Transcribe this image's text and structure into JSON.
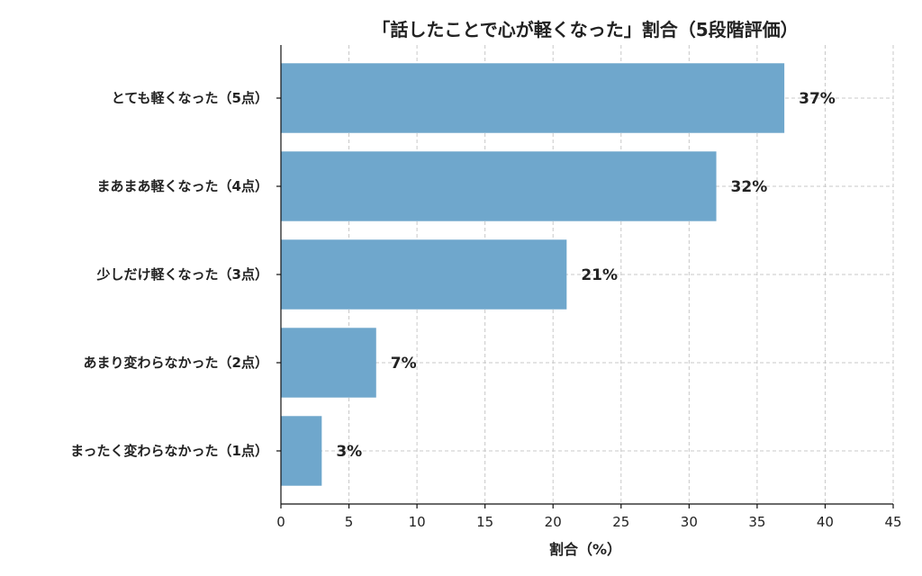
{
  "chart_data": {
    "type": "bar",
    "orientation": "horizontal",
    "title": "「話したことで心が軽くなった」割合（5段階評価）",
    "xlabel": "割合（%）",
    "ylabel": "",
    "categories": [
      "とても軽くなった（5点）",
      "まあまあ軽くなった（4点）",
      "少しだけ軽くなった（3点）",
      "あまり変わらなかった（2点）",
      "まったく変わらなかった（1点）"
    ],
    "values": [
      37,
      32,
      21,
      7,
      3
    ],
    "value_labels": [
      "37%",
      "32%",
      "21%",
      "7%",
      "3%"
    ],
    "xlim": [
      0,
      45
    ],
    "xticks": [
      0,
      5,
      10,
      15,
      20,
      25,
      30,
      35,
      40,
      45
    ],
    "grid": true,
    "bar_color": "#6fa7cc"
  }
}
